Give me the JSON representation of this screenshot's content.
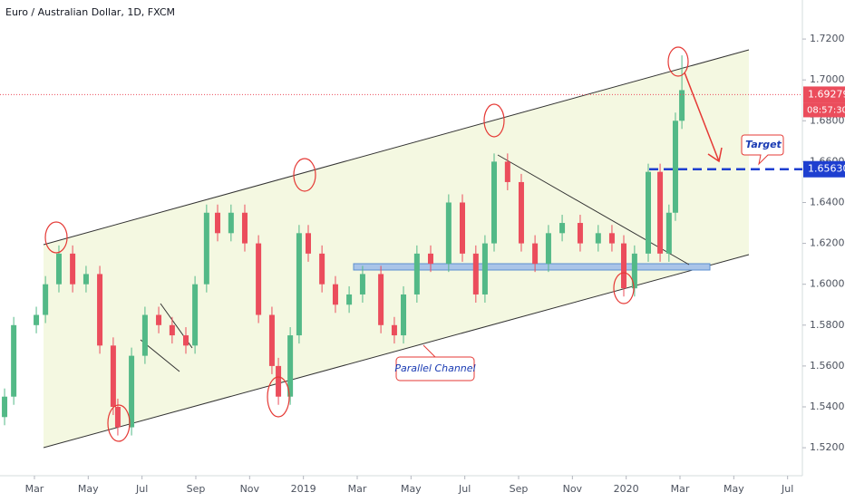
{
  "chart_data": {
    "type": "candlestick",
    "title": "Euro / Australian Dollar, 1D, FXCM",
    "x": [
      0.89,
      1.23,
      2.07,
      2.41,
      2.91,
      3.42,
      3.92,
      4.43,
      4.93,
      5.1,
      5.61,
      6.11,
      6.62,
      7.12,
      7.63,
      7.97,
      8.4,
      8.81,
      9.31,
      9.82,
      10.33,
      10.83,
      11.07,
      11.51,
      11.84,
      12.18,
      12.69,
      13.19,
      13.7,
      14.2,
      14.88,
      15.38,
      15.72,
      16.22,
      16.73,
      17.4,
      17.91,
      18.41,
      18.75,
      19.09,
      19.59,
      20.1,
      20.61,
      21.11,
      21.62,
      22.29,
      22.96,
      23.47,
      23.91,
      24.31,
      24.82,
      25.26,
      25.59,
      25.83,
      26.07
    ],
    "open": [
      1.535,
      1.545,
      1.58,
      1.585,
      1.6,
      1.615,
      1.6,
      1.605,
      1.57,
      1.54,
      1.53,
      1.565,
      1.585,
      1.58,
      1.575,
      1.57,
      1.6,
      1.635,
      1.625,
      1.635,
      1.62,
      1.585,
      1.56,
      1.545,
      1.575,
      1.625,
      1.615,
      1.6,
      1.59,
      1.595,
      1.605,
      1.58,
      1.575,
      1.595,
      1.615,
      1.61,
      1.64,
      1.615,
      1.595,
      1.62,
      1.66,
      1.65,
      1.62,
      1.61,
      1.625,
      1.63,
      1.62,
      1.625,
      1.62,
      1.598,
      1.615,
      1.655,
      1.615,
      1.635,
      1.68
    ],
    "high": [
      1.549,
      1.584,
      1.589,
      1.604,
      1.619,
      1.619,
      1.609,
      1.609,
      1.574,
      1.544,
      1.569,
      1.589,
      1.589,
      1.584,
      1.579,
      1.604,
      1.639,
      1.639,
      1.639,
      1.639,
      1.624,
      1.589,
      1.564,
      1.579,
      1.629,
      1.629,
      1.619,
      1.604,
      1.599,
      1.609,
      1.609,
      1.584,
      1.599,
      1.619,
      1.619,
      1.644,
      1.644,
      1.619,
      1.624,
      1.664,
      1.664,
      1.654,
      1.624,
      1.629,
      1.634,
      1.634,
      1.629,
      1.629,
      1.624,
      1.619,
      1.659,
      1.659,
      1.639,
      1.684,
      1.712
    ],
    "low": [
      1.531,
      1.541,
      1.576,
      1.581,
      1.596,
      1.596,
      1.596,
      1.566,
      1.536,
      1.526,
      1.526,
      1.561,
      1.576,
      1.571,
      1.566,
      1.566,
      1.596,
      1.621,
      1.621,
      1.616,
      1.581,
      1.556,
      1.541,
      1.541,
      1.571,
      1.611,
      1.596,
      1.586,
      1.586,
      1.591,
      1.576,
      1.571,
      1.571,
      1.591,
      1.606,
      1.606,
      1.611,
      1.591,
      1.591,
      1.616,
      1.646,
      1.616,
      1.606,
      1.606,
      1.621,
      1.616,
      1.616,
      1.616,
      1.594,
      1.594,
      1.611,
      1.611,
      1.611,
      1.631,
      1.676
    ],
    "close": [
      1.545,
      1.58,
      1.585,
      1.6,
      1.615,
      1.6,
      1.605,
      1.57,
      1.54,
      1.53,
      1.565,
      1.585,
      1.58,
      1.575,
      1.57,
      1.6,
      1.635,
      1.625,
      1.635,
      1.62,
      1.585,
      1.56,
      1.545,
      1.575,
      1.625,
      1.615,
      1.6,
      1.59,
      1.595,
      1.605,
      1.58,
      1.575,
      1.595,
      1.615,
      1.61,
      1.64,
      1.615,
      1.595,
      1.62,
      1.66,
      1.65,
      1.62,
      1.61,
      1.625,
      1.63,
      1.62,
      1.625,
      1.62,
      1.598,
      1.615,
      1.655,
      1.615,
      1.635,
      1.68,
      1.695
    ],
    "up_color": "#53b987",
    "down_color": "#eb4d5c",
    "xlim": [
      0.72,
      30.55
    ],
    "xticks": [
      {
        "value": 2,
        "label": "Mar"
      },
      {
        "value": 4,
        "label": "May"
      },
      {
        "value": 6,
        "label": "Jul"
      },
      {
        "value": 8,
        "label": "Sep"
      },
      {
        "value": 10,
        "label": "Nov"
      },
      {
        "value": 12,
        "label": "2019"
      },
      {
        "value": 14,
        "label": "Mar"
      },
      {
        "value": 16,
        "label": "May"
      },
      {
        "value": 18,
        "label": "Jul"
      },
      {
        "value": 20,
        "label": "Sep"
      },
      {
        "value": 22,
        "label": "Nov"
      },
      {
        "value": 24,
        "label": "2020"
      },
      {
        "value": 26,
        "label": "Mar"
      },
      {
        "value": 28,
        "label": "May"
      },
      {
        "value": 30,
        "label": "Jul"
      }
    ],
    "ylim": [
      1.5063,
      1.7391
    ],
    "yticks": [
      {
        "value": 1.52,
        "label": "1.52000"
      },
      {
        "value": 1.54,
        "label": "1.54000"
      },
      {
        "value": 1.56,
        "label": "1.56000"
      },
      {
        "value": 1.58,
        "label": "1.58000"
      },
      {
        "value": 1.6,
        "label": "1.60000"
      },
      {
        "value": 1.62,
        "label": "1.62000"
      },
      {
        "value": 1.64,
        "label": "1.64000"
      },
      {
        "value": 1.66,
        "label": "1.66000"
      },
      {
        "value": 1.68,
        "label": "1.68000"
      },
      {
        "value": 1.7,
        "label": "1.70000"
      },
      {
        "value": 1.72,
        "label": "1.72000"
      }
    ],
    "last_price": 1.69279,
    "countdown": "08:57:30",
    "target_price": {
      "value": 1.6563,
      "label": "1.65630"
    },
    "annotations": [
      "Target",
      "Parallel Channel"
    ]
  }
}
